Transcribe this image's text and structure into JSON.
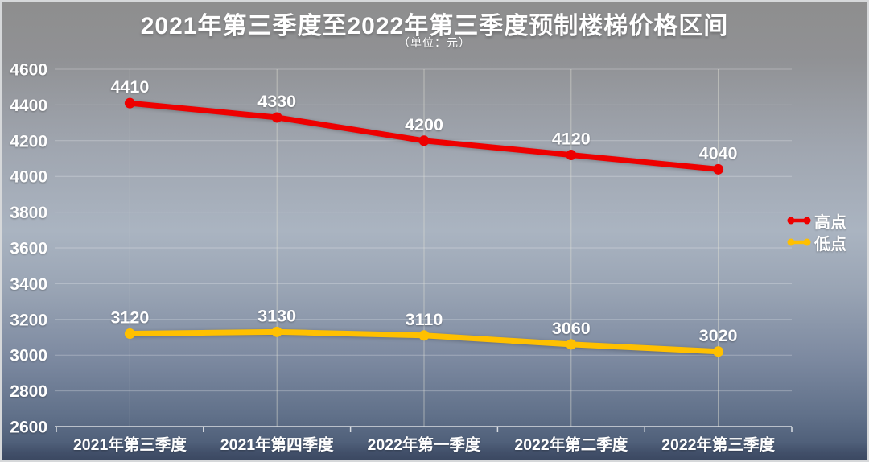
{
  "chart_data": {
    "type": "line",
    "title": "2021年第三季度至2022年第三季度预制楼梯价格区间",
    "subtitle": "（单位：元）",
    "categories": [
      "2021年第三季度",
      "2021年第四季度",
      "2022年第一季度",
      "2022年第二季度",
      "2022年第三季度"
    ],
    "series": [
      {
        "key": "high",
        "name": "高点",
        "color": "#ee0000",
        "values": [
          4410,
          4330,
          4200,
          4120,
          4040
        ]
      },
      {
        "key": "low",
        "name": "低点",
        "color": "#ffc000",
        "values": [
          3120,
          3130,
          3110,
          3060,
          3020
        ]
      }
    ],
    "ylim": [
      2600,
      4600
    ],
    "ytick_step": 200,
    "yticks": [
      2600,
      2800,
      3000,
      3200,
      3400,
      3600,
      3800,
      4000,
      4200,
      4400,
      4600
    ],
    "grid": true,
    "legend_position": "right-middle"
  },
  "colors": {
    "background_top": "#8e8e8e",
    "background_mid": "#aab4c1",
    "background_bottom": "#3b4861",
    "text": "#ffffff",
    "series_high": "#ee0000",
    "series_low": "#ffc000"
  }
}
